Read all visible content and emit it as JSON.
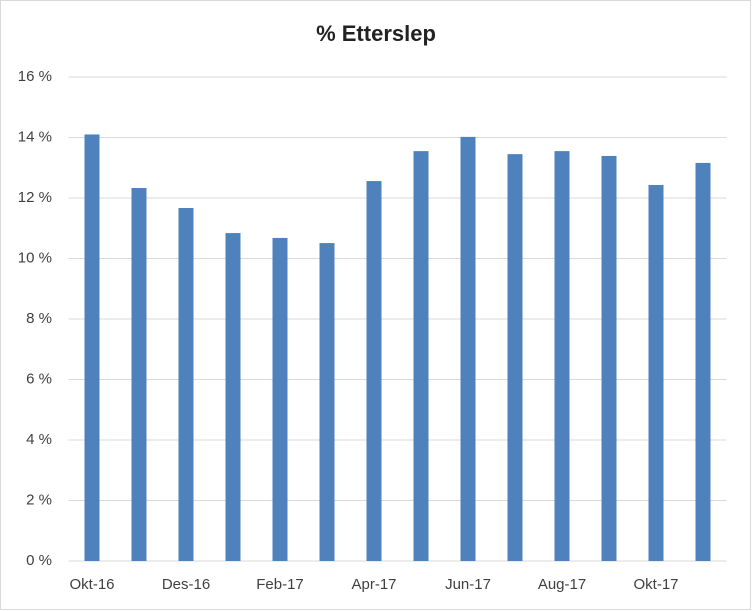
{
  "chart_data": {
    "type": "bar",
    "title": "% Etterslep",
    "categories": [
      "Okt-16",
      null,
      "Des-16",
      null,
      "Feb-17",
      null,
      "Apr-17",
      null,
      "Jun-17",
      null,
      "Aug-17",
      null,
      "Okt-17",
      null
    ],
    "values": [
      14.1,
      12.33,
      11.67,
      10.84,
      10.68,
      10.51,
      12.56,
      13.55,
      14.02,
      13.45,
      13.55,
      13.39,
      12.43,
      13.16
    ],
    "color": "#4f81bd",
    "ylim": [
      0,
      16
    ],
    "yticks": [
      {
        "value": 0,
        "label": "0 %"
      },
      {
        "value": 2,
        "label": "2 %"
      },
      {
        "value": 4,
        "label": "4 %"
      },
      {
        "value": 6,
        "label": "6 %"
      },
      {
        "value": 8,
        "label": "8 %"
      },
      {
        "value": 10,
        "label": "10 %"
      },
      {
        "value": 12,
        "label": "12 %"
      },
      {
        "value": 14,
        "label": "14 %"
      },
      {
        "value": 16,
        "label": "16 %"
      }
    ],
    "grid": true
  }
}
